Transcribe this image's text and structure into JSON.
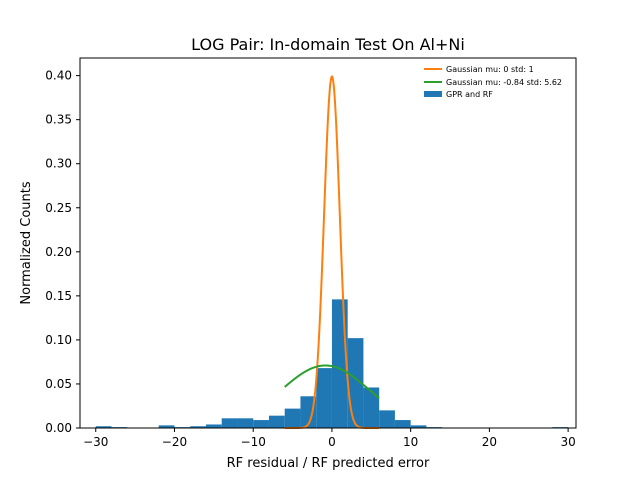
{
  "chart_data": {
    "type": "bar",
    "title": "LOG Pair: In-domain Test On Al+Ni",
    "xlabel": "RF residual / RF predicted error",
    "ylabel": "Normalized Counts",
    "xlim": [
      -32,
      31
    ],
    "ylim": [
      0,
      0.42
    ],
    "xticks": [
      -30,
      -20,
      -10,
      0,
      10,
      20,
      30
    ],
    "yticks": [
      0.0,
      0.05,
      0.1,
      0.15,
      0.2,
      0.25,
      0.3,
      0.35,
      0.4
    ],
    "ytick_labels": [
      "0.00",
      "0.05",
      "0.10",
      "0.15",
      "0.20",
      "0.25",
      "0.30",
      "0.35",
      "0.40"
    ],
    "grid": false,
    "legend_position": "top-right",
    "histogram": {
      "name": "GPR and RF",
      "color": "#1f77b4",
      "bin_edges": [
        -30,
        -28,
        -26,
        -24,
        -22,
        -20,
        -18,
        -16,
        -14,
        -12,
        -10,
        -8,
        -6,
        -4,
        -2,
        0,
        2,
        4,
        6,
        8,
        10,
        12,
        14,
        16,
        18,
        20,
        22,
        24,
        26,
        28,
        30
      ],
      "values": [
        0.002,
        0.001,
        0.0,
        0.0,
        0.003,
        0.001,
        0.002,
        0.004,
        0.011,
        0.011,
        0.009,
        0.014,
        0.022,
        0.036,
        0.068,
        0.146,
        0.102,
        0.046,
        0.02,
        0.009,
        0.003,
        0.001,
        0.0,
        0.0,
        0.0,
        0.0,
        0.0,
        0.0,
        0.0,
        0.001
      ]
    },
    "series": [
      {
        "name": "Gaussian mu: 0 std: 1",
        "kind": "line",
        "color": "#ff7f0e",
        "mu": 0,
        "std": 1,
        "x_range": [
          -6,
          6
        ]
      },
      {
        "name": "Gaussian mu: -0.84 std: 5.62",
        "kind": "line",
        "color": "#2ca02c",
        "mu": -0.84,
        "std": 5.62,
        "x_range": [
          -6,
          6
        ]
      }
    ]
  }
}
